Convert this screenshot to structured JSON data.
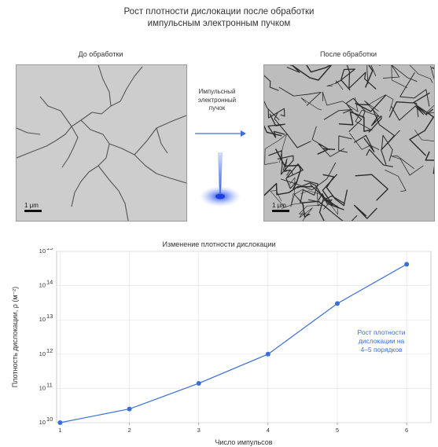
{
  "title_lines": [
    "Рост плотности дислокации после обработки",
    "импульсным электронным пучком"
  ],
  "before_label": "До обработки",
  "after_label": "После обработки",
  "scale_label_before": "1 μm",
  "scale_label_after": "1 μm",
  "beam_lines": [
    "Импульсный",
    "электронный",
    "пучок"
  ],
  "colors": {
    "series": "#3a6fd8",
    "beam": "#2d56e0",
    "grid": "#e4e4e4"
  },
  "chart_data": {
    "type": "line",
    "title": "Изменение плотности дислокации",
    "xlabel": "Число импульсов",
    "ylabel": "Плотность дислокации, ρ (м⁻²)",
    "x": [
      1,
      2,
      3,
      4,
      5,
      6
    ],
    "y": [
      10000000000.0,
      25000000000.0,
      140000000000.0,
      1000000000000.0,
      30000000000000.0,
      420000000000000.0
    ],
    "xlim": [
      0.95,
      6.35
    ],
    "ylim": [
      10000000000.0,
      1000000000000000.0
    ],
    "yscale": "log",
    "y_ticks": [
      {
        "exp": 10,
        "label": "10",
        "sup": "10"
      },
      {
        "exp": 11,
        "label": "10",
        "sup": "11"
      },
      {
        "exp": 12,
        "label": "10",
        "sup": "12"
      },
      {
        "exp": 13,
        "label": "10",
        "sup": "13"
      },
      {
        "exp": 14,
        "label": "10",
        "sup": "14"
      },
      {
        "exp": 15,
        "label": "10",
        "sup": "15"
      }
    ],
    "x_ticks": [
      "1",
      "2",
      "3",
      "4",
      "5",
      "6"
    ],
    "grid": true,
    "annotation_lines": [
      "Рост плотности",
      "дислокации на",
      "4–5 порядков"
    ]
  }
}
